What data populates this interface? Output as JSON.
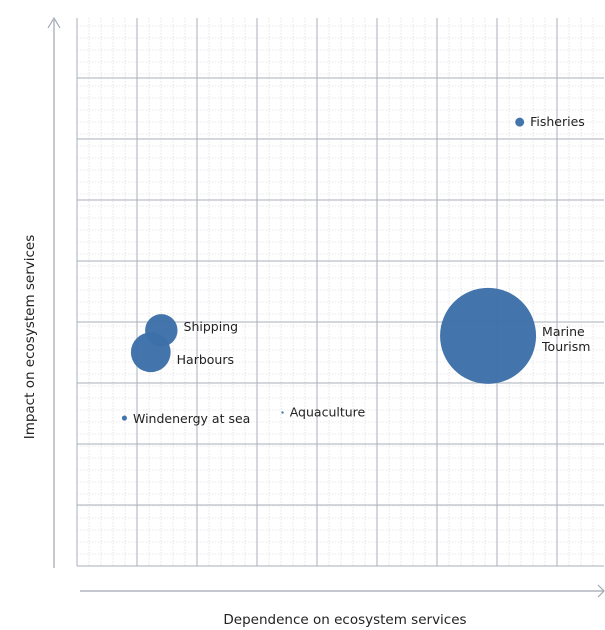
{
  "chart_data": {
    "type": "bubble",
    "xlabel": "Dependence on ecosystem services",
    "ylabel": "Impact on ecosystem services",
    "xlim": [
      0,
      10
    ],
    "ylim": [
      0,
      10
    ],
    "grid": true,
    "tick_labels": false,
    "legend": "none",
    "color": "#3d6fa8",
    "points": [
      {
        "label": "Fisheries",
        "x": 8.4,
        "y": 8.1,
        "size": 0.3
      },
      {
        "label": "Shipping",
        "x": 1.6,
        "y": 4.3,
        "size": 4
      },
      {
        "label": "Harbours",
        "x": 1.4,
        "y": 3.9,
        "size": 6
      },
      {
        "label": "Marine Tourism",
        "x": 7.8,
        "y": 4.2,
        "size": 35
      },
      {
        "label": "Windenergy at sea",
        "x": 0.9,
        "y": 2.7,
        "size": 0.1
      },
      {
        "label": "Aquaculture",
        "x": 3.9,
        "y": 2.8,
        "size": 0.005
      }
    ]
  }
}
